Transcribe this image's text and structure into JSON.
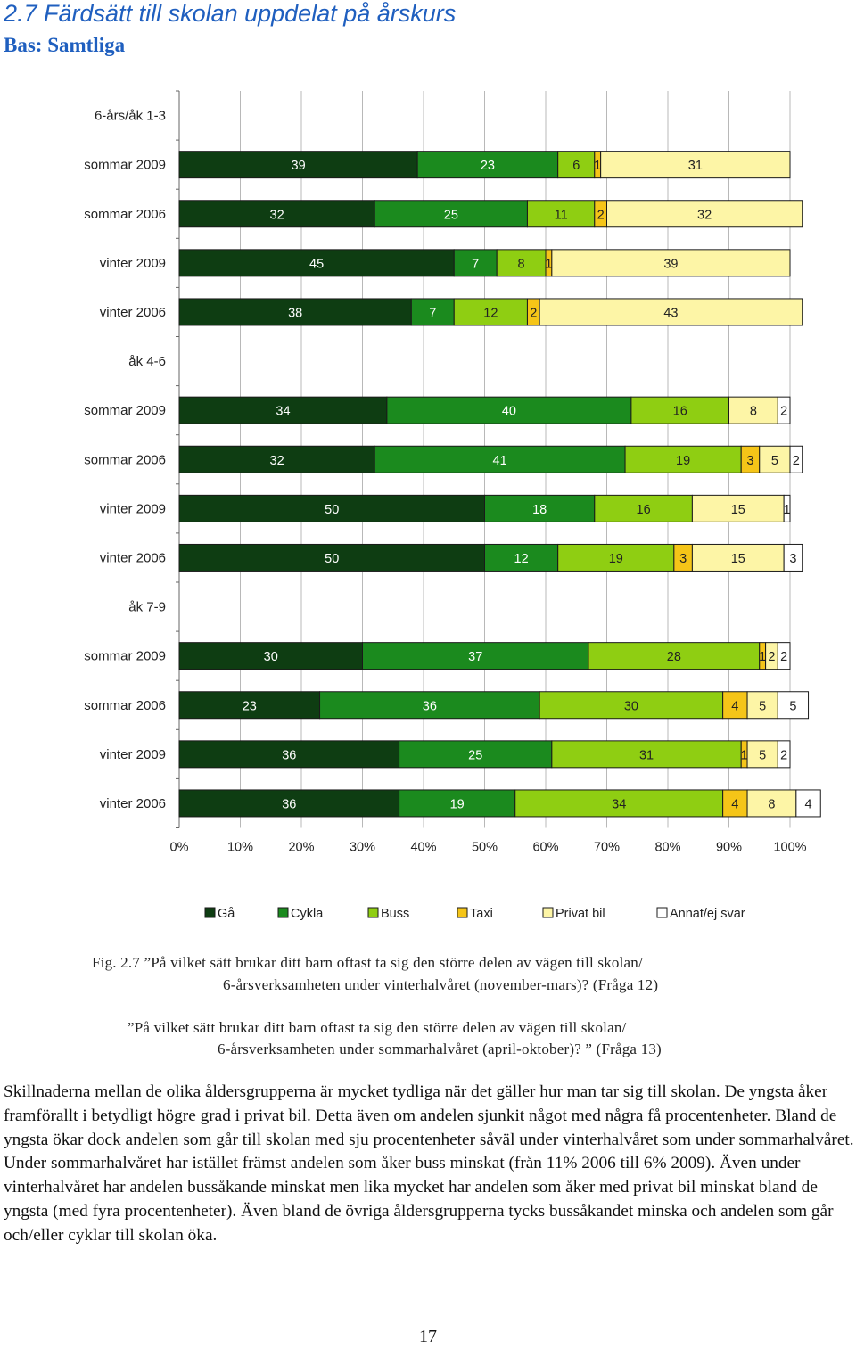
{
  "heading": "2.7 Färdsätt till skolan uppdelat på årskurs",
  "subheading": "Bas: Samtliga",
  "colors": {
    "ga": "#0e3d12",
    "cykla": "#1b8a1e",
    "buss": "#8fce12",
    "taxi": "#f5c518",
    "privat_bil": "#fdf5a6",
    "annat": "#ffffff"
  },
  "chart_data": {
    "type": "bar",
    "orientation": "horizontal-stacked-100",
    "series_names": [
      "Gå",
      "Cykla",
      "Buss",
      "Taxi",
      "Privat bil",
      "Annat/ej svar"
    ],
    "rows": [
      {
        "label": "6-års/åk 1-3",
        "group_header": true,
        "values": []
      },
      {
        "label": "sommar 2009",
        "values": [
          39,
          23,
          6,
          1,
          31,
          0
        ]
      },
      {
        "label": "sommar 2006",
        "values": [
          32,
          25,
          11,
          2,
          32,
          0
        ]
      },
      {
        "label": "vinter 2009",
        "values": [
          45,
          7,
          8,
          1,
          39,
          0
        ]
      },
      {
        "label": "vinter 2006",
        "values": [
          38,
          7,
          12,
          2,
          43,
          0
        ]
      },
      {
        "label": "åk 4-6",
        "group_header": true,
        "values": []
      },
      {
        "label": "sommar 2009",
        "values": [
          34,
          40,
          16,
          0,
          8,
          2
        ]
      },
      {
        "label": "sommar 2006",
        "values": [
          32,
          41,
          19,
          3,
          5,
          2
        ]
      },
      {
        "label": "vinter 2009",
        "values": [
          50,
          18,
          16,
          0,
          15,
          1
        ]
      },
      {
        "label": "vinter 2006",
        "values": [
          50,
          12,
          19,
          3,
          15,
          3
        ]
      },
      {
        "label": "åk 7-9",
        "group_header": true,
        "values": []
      },
      {
        "label": "sommar 2009",
        "values": [
          30,
          37,
          28,
          1,
          2,
          2
        ]
      },
      {
        "label": "sommar 2006",
        "values": [
          23,
          36,
          30,
          4,
          5,
          5
        ]
      },
      {
        "label": "vinter 2009",
        "values": [
          36,
          25,
          31,
          1,
          5,
          2
        ]
      },
      {
        "label": "vinter 2006",
        "values": [
          36,
          19,
          34,
          4,
          8,
          4
        ]
      }
    ],
    "x_ticks": [
      "0%",
      "10%",
      "20%",
      "30%",
      "40%",
      "50%",
      "60%",
      "70%",
      "80%",
      "90%",
      "100%"
    ],
    "xlim": [
      0,
      100
    ],
    "grid": true,
    "legend_position": "bottom"
  },
  "caption": {
    "line1": "Fig. 2.7 ”På vilket sätt brukar ditt barn oftast ta sig den större delen av vägen till skolan/",
    "line2": "6-årsverksamheten under vinterhalvåret (november-mars)? (Fråga 12)",
    "line3": "”På vilket sätt brukar ditt barn oftast ta sig den större delen av vägen till skolan/",
    "line4": "6-årsverksamheten under sommarhalvåret (april-oktober)? ” (Fråga 13)"
  },
  "body_text": "Skillnaderna mellan de olika åldersgrupperna är mycket tydliga när det gäller hur man tar sig till skolan. De yngsta åker framförallt i betydligt högre grad i privat bil. Detta även om andelen sjunkit något med några få procentenheter. Bland de yngsta ökar dock andelen som går till skolan med sju procentenheter såväl under vinterhalvåret som under sommarhalvåret. Under sommarhalvåret har istället främst andelen som åker buss minskat (från 11% 2006 till 6% 2009). Även under vinterhalvåret har andelen bussåkande minskat men lika mycket har andelen som åker med privat bil minskat bland de yngsta (med fyra procentenheter). Även bland de övriga åldersgrupperna tycks bussåkandet minska och andelen som går och/eller cyklar till skolan öka.",
  "page_number": "17"
}
